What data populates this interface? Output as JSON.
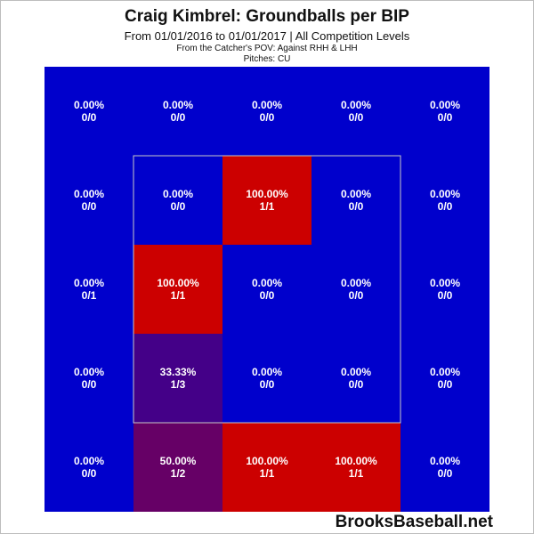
{
  "title": "Craig Kimbrel: Groundballs per BIP",
  "subtitle": "From 01/01/2016 to 01/01/2017 | All Competition Levels",
  "pov_note": "From the Catcher's POV:  Against RHH & LHH",
  "pitches_note": "Pitches:  CU",
  "watermark": "BrooksBaseball.net",
  "colors": {
    "low": "#0000cc",
    "high": "#cc0000",
    "zone_outline": "#c8c8c8",
    "cell_text": "#ffffff"
  },
  "chart_data": {
    "type": "heatmap",
    "rows": 5,
    "cols": 5,
    "strike_zone": {
      "rows": [
        1,
        3
      ],
      "cols": [
        1,
        3
      ]
    },
    "cells": [
      [
        {
          "pct": "0.00%",
          "frac": "0/0",
          "value": 0
        },
        {
          "pct": "0.00%",
          "frac": "0/0",
          "value": 0
        },
        {
          "pct": "0.00%",
          "frac": "0/0",
          "value": 0
        },
        {
          "pct": "0.00%",
          "frac": "0/0",
          "value": 0
        },
        {
          "pct": "0.00%",
          "frac": "0/0",
          "value": 0
        }
      ],
      [
        {
          "pct": "0.00%",
          "frac": "0/0",
          "value": 0
        },
        {
          "pct": "0.00%",
          "frac": "0/0",
          "value": 0
        },
        {
          "pct": "100.00%",
          "frac": "1/1",
          "value": 100
        },
        {
          "pct": "0.00%",
          "frac": "0/0",
          "value": 0
        },
        {
          "pct": "0.00%",
          "frac": "0/0",
          "value": 0
        }
      ],
      [
        {
          "pct": "0.00%",
          "frac": "0/1",
          "value": 0
        },
        {
          "pct": "100.00%",
          "frac": "1/1",
          "value": 100
        },
        {
          "pct": "0.00%",
          "frac": "0/0",
          "value": 0
        },
        {
          "pct": "0.00%",
          "frac": "0/0",
          "value": 0
        },
        {
          "pct": "0.00%",
          "frac": "0/0",
          "value": 0
        }
      ],
      [
        {
          "pct": "0.00%",
          "frac": "0/0",
          "value": 0
        },
        {
          "pct": "33.33%",
          "frac": "1/3",
          "value": 33.33
        },
        {
          "pct": "0.00%",
          "frac": "0/0",
          "value": 0
        },
        {
          "pct": "0.00%",
          "frac": "0/0",
          "value": 0
        },
        {
          "pct": "0.00%",
          "frac": "0/0",
          "value": 0
        }
      ],
      [
        {
          "pct": "0.00%",
          "frac": "0/0",
          "value": 0
        },
        {
          "pct": "50.00%",
          "frac": "1/2",
          "value": 50
        },
        {
          "pct": "100.00%",
          "frac": "1/1",
          "value": 100
        },
        {
          "pct": "100.00%",
          "frac": "1/1",
          "value": 100
        },
        {
          "pct": "0.00%",
          "frac": "0/0",
          "value": 0
        }
      ]
    ]
  }
}
